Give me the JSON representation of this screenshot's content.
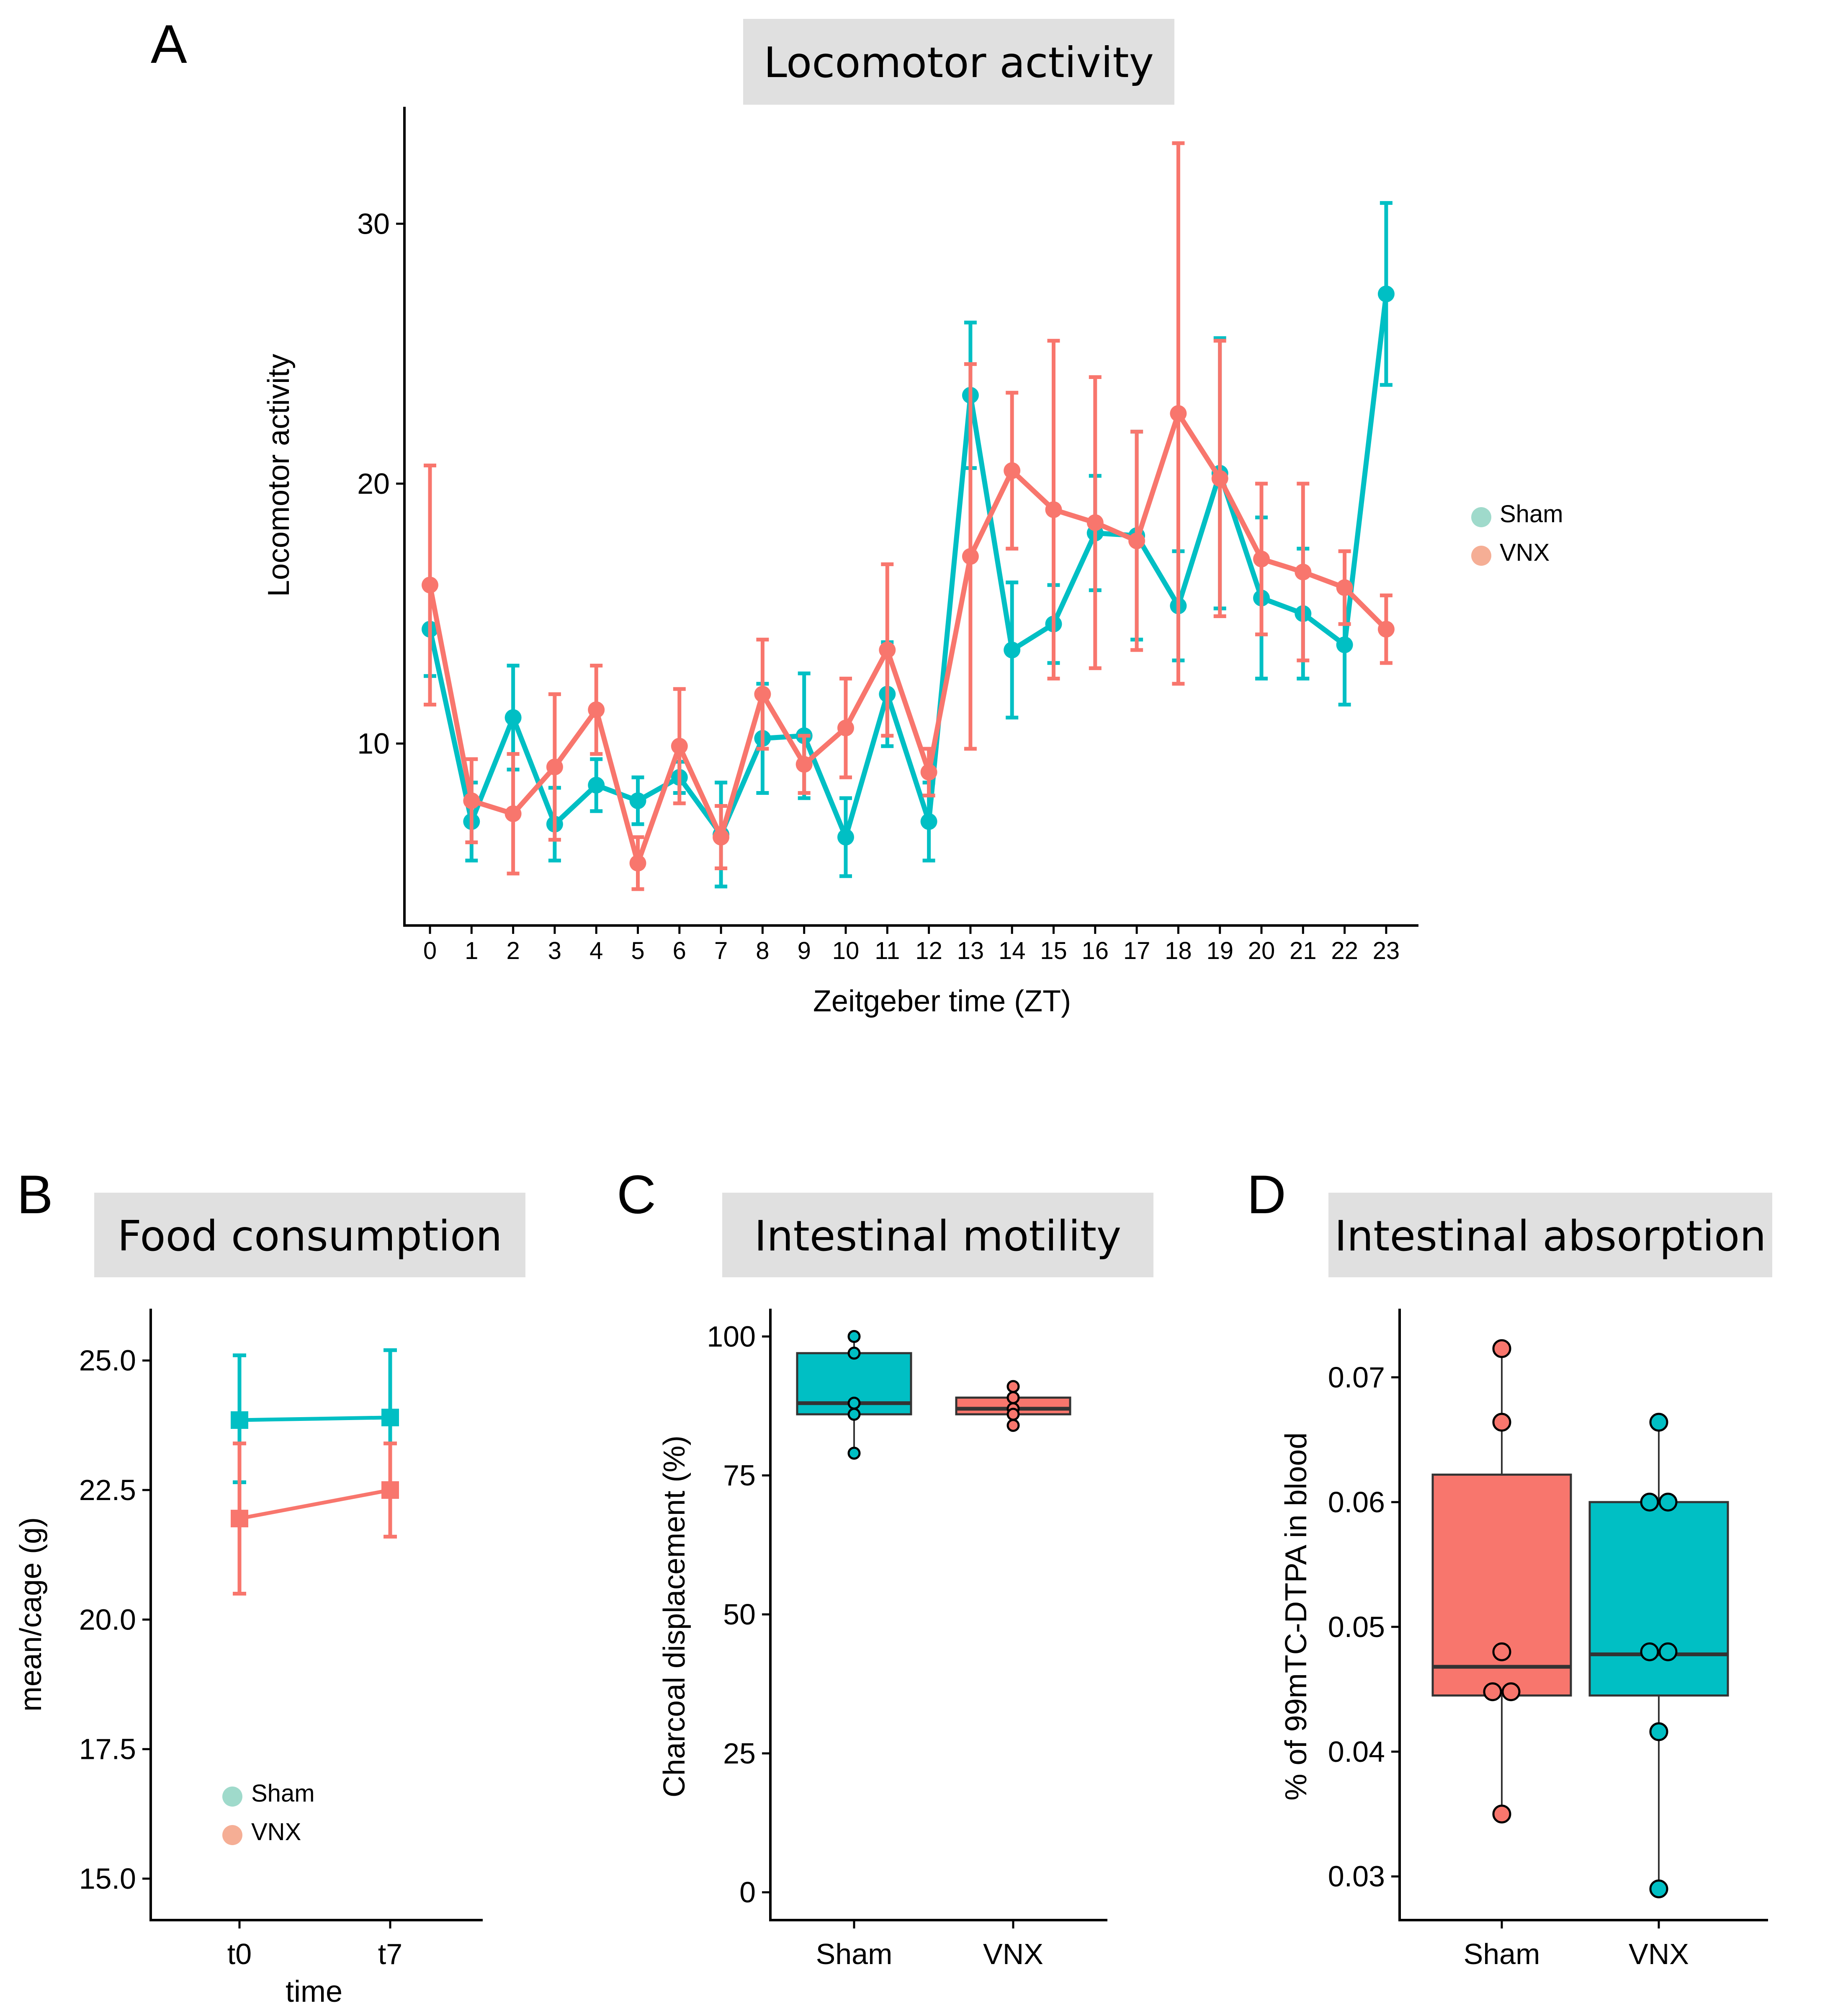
{
  "colors": {
    "sham": "#00BFC4",
    "vnx": "#F8766D",
    "sham_legend": "#9FDACB",
    "vnx_legend": "#F5AE95",
    "title_bg": "#E0E0E0"
  },
  "panels": {
    "A": {
      "letter": "A"
    },
    "B": {
      "letter": "B"
    },
    "C": {
      "letter": "C"
    },
    "D": {
      "letter": "D"
    }
  },
  "chart_data": [
    {
      "panel": "A",
      "type": "line",
      "title": "Locomotor activity",
      "xlabel": "Zeitgeber time (ZT)",
      "ylabel": "Locomotor activity",
      "x": [
        0,
        1,
        2,
        3,
        4,
        5,
        6,
        7,
        8,
        9,
        10,
        11,
        12,
        13,
        14,
        15,
        16,
        17,
        18,
        19,
        20,
        21,
        22,
        23
      ],
      "yticks": [
        10,
        20,
        30
      ],
      "ylim": [
        3.0,
        34.5
      ],
      "legend": [
        "Sham",
        "VNX"
      ],
      "series": [
        {
          "name": "Sham",
          "values": [
            14.4,
            7.0,
            11.0,
            6.9,
            8.4,
            7.8,
            8.7,
            6.5,
            10.2,
            10.3,
            6.4,
            11.9,
            7.0,
            23.4,
            13.6,
            14.6,
            18.1,
            18.0,
            15.3,
            20.4,
            15.6,
            15.0,
            13.8,
            27.3
          ],
          "err": [
            1.8,
            1.5,
            2.0,
            1.4,
            1.0,
            0.9,
            0.6,
            2.0,
            2.1,
            2.4,
            1.5,
            2.0,
            1.5,
            2.8,
            2.6,
            1.5,
            2.2,
            4.0,
            2.1,
            5.2,
            3.1,
            2.5,
            2.3,
            3.5
          ]
        },
        {
          "name": "VNX",
          "values": [
            16.1,
            7.8,
            7.3,
            9.1,
            11.3,
            5.4,
            9.9,
            6.4,
            11.9,
            9.2,
            10.6,
            13.6,
            8.9,
            17.2,
            20.5,
            19.0,
            18.5,
            17.8,
            22.7,
            20.2,
            17.1,
            16.6,
            16.0,
            14.4
          ],
          "err": [
            4.6,
            1.6,
            2.3,
            2.8,
            1.7,
            1.0,
            2.2,
            1.2,
            2.1,
            1.1,
            1.9,
            3.3,
            0.9,
            7.4,
            3.0,
            6.5,
            5.6,
            4.2,
            10.4,
            5.3,
            2.9,
            3.4,
            1.4,
            1.3
          ]
        }
      ]
    },
    {
      "panel": "B",
      "type": "line",
      "title": "Food consumption",
      "xlabel": "time",
      "ylabel": "mean/cage (g)",
      "categories": [
        "t0",
        "t7"
      ],
      "yticks": [
        "15.0",
        "17.5",
        "20.0",
        "22.5",
        "25.0"
      ],
      "ylim": [
        14.2,
        26.0
      ],
      "legend": [
        "Sham",
        "VNX"
      ],
      "series": [
        {
          "name": "Sham",
          "values": [
            23.85,
            23.9
          ],
          "err": [
            1.25,
            1.3
          ],
          "err_low": [
            1.2,
            1.3
          ]
        },
        {
          "name": "VNX",
          "values": [
            21.95,
            22.5
          ],
          "err": [
            1.45,
            0.9
          ],
          "err_low": [
            1.45,
            0.9
          ]
        }
      ]
    },
    {
      "panel": "C",
      "type": "box",
      "title": "Intestinal motility",
      "xlabel": "",
      "ylabel": "Charcoal displacement (%)",
      "categories": [
        "Sham",
        "VNX"
      ],
      "yticks": [
        "0",
        "25",
        "50",
        "75",
        "100"
      ],
      "ylim": [
        -5,
        105
      ],
      "series": [
        {
          "name": "Sham",
          "q1": 86,
          "median": 88,
          "q3": 97,
          "whisker_low": 79,
          "whisker_high": 100,
          "points": [
            100,
            97,
            88,
            86,
            79
          ]
        },
        {
          "name": "VNX",
          "q1": 86,
          "median": 87,
          "q3": 89,
          "whisker_low": 84,
          "whisker_high": 91,
          "points": [
            91,
            89,
            87,
            86,
            84
          ]
        }
      ]
    },
    {
      "panel": "D",
      "type": "box",
      "title": "Intestinal absorption",
      "xlabel": "",
      "ylabel": "% of 99mTC-DTPA in blood",
      "categories": [
        "Sham",
        "VNX"
      ],
      "yticks": [
        "0.03",
        "0.04",
        "0.05",
        "0.06",
        "0.07"
      ],
      "ylim": [
        0.0265,
        0.0755
      ],
      "series": [
        {
          "name": "Sham",
          "q1": 0.0445,
          "median": 0.0468,
          "q3": 0.0622,
          "whisker_low": 0.035,
          "whisker_high": 0.0723,
          "points": [
            0.0723,
            0.0664,
            0.048,
            0.0448,
            0.0448,
            0.035
          ]
        },
        {
          "name": "VNX",
          "q1": 0.0445,
          "median": 0.0478,
          "q3": 0.06,
          "whisker_low": 0.029,
          "whisker_high": 0.0664,
          "points": [
            0.0664,
            0.06,
            0.06,
            0.048,
            0.048,
            0.0416,
            0.029
          ]
        }
      ]
    }
  ]
}
